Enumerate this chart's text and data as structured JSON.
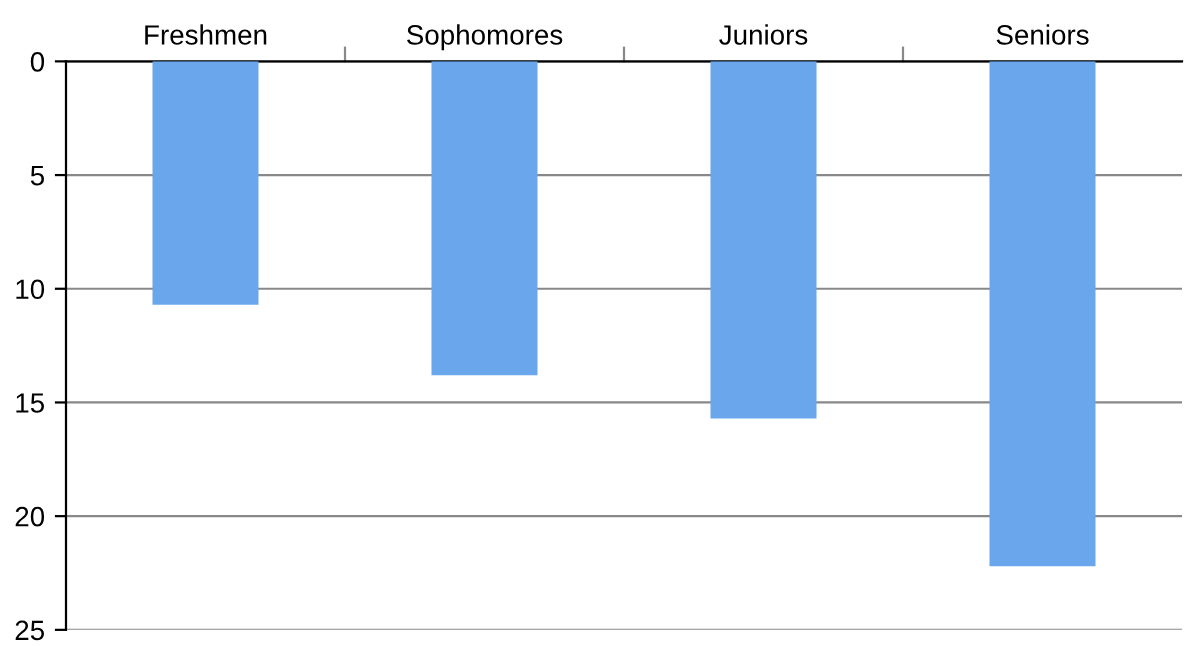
{
  "chart_data": {
    "type": "bar",
    "categories": [
      "Freshmen",
      "Sophomores",
      "Juniors",
      "Seniors"
    ],
    "values": [
      10.7,
      13.8,
      15.7,
      22.2
    ],
    "color": "#6aa6ec",
    "ylim": [
      25,
      0
    ],
    "yticks": [
      0,
      5,
      10,
      15,
      20,
      25
    ],
    "grid": "y"
  }
}
